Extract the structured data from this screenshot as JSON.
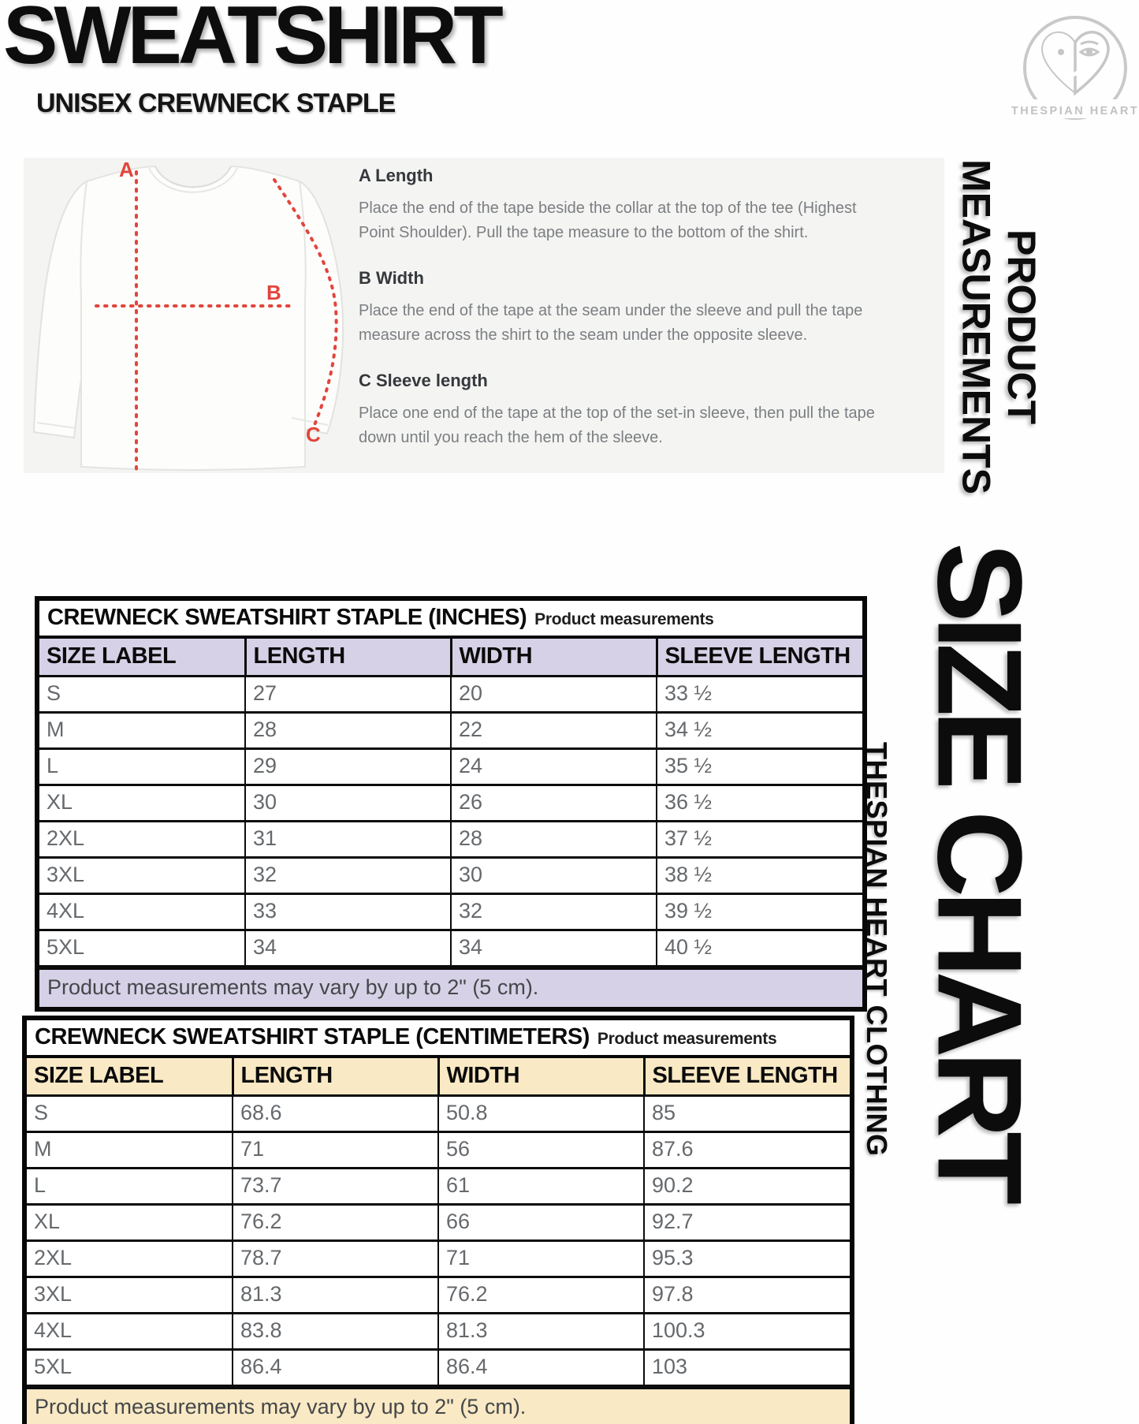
{
  "header": {
    "title": "SWEATSHIRT",
    "subtitle": "UNISEX CREWNECK STAPLE"
  },
  "logo": {
    "brand": "THESPIAN HEART",
    "symbol": "theater-masks-heart"
  },
  "side_labels": {
    "product_measurements": "PRODUCT\nMEASUREMENTS",
    "size_chart": "SIZE CHART",
    "brand_vertical": "THESPIAN HEART CLOTHING"
  },
  "diagram": {
    "marker_a": "A",
    "marker_b": "B",
    "marker_c": "C",
    "sections": [
      {
        "heading": "A Length",
        "body": "Place the end of the tape beside the collar at the top of the tee (Highest\nPoint Shoulder). Pull the tape measure to the bottom of the shirt."
      },
      {
        "heading": "B Width",
        "body": "Place the end of the tape at the seam under the sleeve and pull the tape\nmeasure across the shirt to the seam under the opposite sleeve."
      },
      {
        "heading": "C Sleeve length",
        "body": "Place one end of the tape at the top of the set-in sleeve, then pull the tape\ndown until you reach the hem of the sleeve."
      }
    ]
  },
  "tables": [
    {
      "title": "CREWNECK SWEATSHIRT STAPLE (INCHES)",
      "subtitle": "Product measurements",
      "accent": "#d6d1e6",
      "columns": [
        "SIZE LABEL",
        "LENGTH",
        "WIDTH",
        "SLEEVE LENGTH"
      ],
      "rows": [
        [
          "S",
          "27",
          "20",
          "33 ½"
        ],
        [
          "M",
          "28",
          "22",
          "34 ½"
        ],
        [
          "L",
          "29",
          "24",
          "35 ½"
        ],
        [
          "XL",
          "30",
          "26",
          "36 ½"
        ],
        [
          "2XL",
          "31",
          "28",
          "37 ½"
        ],
        [
          "3XL",
          "32",
          "30",
          "38 ½"
        ],
        [
          "4XL",
          "33",
          "32",
          "39 ½"
        ],
        [
          "5XL",
          "34",
          "34",
          "40 ½"
        ]
      ],
      "footer": "Product measurements may vary by up to 2\" (5 cm)."
    },
    {
      "title": "CREWNECK SWEATSHIRT STAPLE (CENTIMETERS)",
      "subtitle": "Product measurements",
      "accent": "#f9e9c4",
      "columns": [
        "SIZE LABEL",
        "LENGTH",
        "WIDTH",
        "SLEEVE LENGTH"
      ],
      "rows": [
        [
          "S",
          "68.6",
          "50.8",
          "85"
        ],
        [
          "M",
          "71",
          "56",
          "87.6"
        ],
        [
          "L",
          "73.7",
          "61",
          "90.2"
        ],
        [
          "XL",
          "76.2",
          "66",
          "92.7"
        ],
        [
          "2XL",
          "78.7",
          "71",
          "95.3"
        ],
        [
          "3XL",
          "81.3",
          "76.2",
          "97.8"
        ],
        [
          "4XL",
          "83.8",
          "81.3",
          "100.3"
        ],
        [
          "5XL",
          "86.4",
          "86.4",
          "103"
        ]
      ],
      "footer": "Product measurements may vary by up to 2\" (5 cm)."
    }
  ],
  "colors": {
    "measure_red": "#e2453c",
    "accent_inches": "#d6d1e6",
    "accent_cm": "#f9e9c4",
    "panel_gray": "#f4f4f2",
    "logo_gray": "#c6c6c6",
    "text_black": "#0d0d0d",
    "cell_gray": "#66696c"
  }
}
